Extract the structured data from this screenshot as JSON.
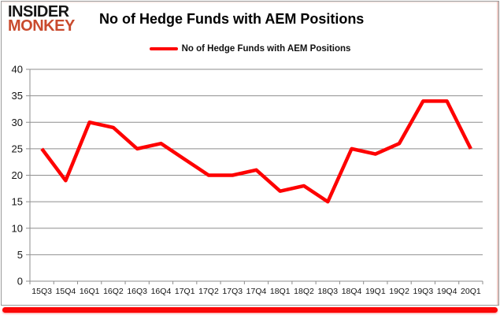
{
  "brand": {
    "line1": "INSIDER",
    "line2": "MONKEY"
  },
  "title": "No of Hedge Funds with AEM Positions",
  "legend": {
    "label": "No of Hedge Funds with AEM Positions",
    "color": "#fe0000"
  },
  "colors": {
    "series_red": "#fe0000",
    "logo_red": "#c94a2d",
    "grid_gray": "#8e8e8e",
    "border_gray": "#9a9a9a",
    "accent_bar_red": "#fb0707"
  },
  "chart_data": {
    "type": "line",
    "title": "No of Hedge Funds with AEM Positions",
    "categories": [
      "15Q3",
      "15Q4",
      "16Q1",
      "16Q2",
      "16Q3",
      "16Q4",
      "17Q1",
      "17Q2",
      "17Q3",
      "17Q4",
      "18Q1",
      "18Q2",
      "18Q3",
      "18Q4",
      "19Q1",
      "19Q2",
      "19Q3",
      "19Q4",
      "20Q1"
    ],
    "series": [
      {
        "name": "No of Hedge Funds with AEM Positions",
        "color": "#fe0000",
        "values": [
          25,
          19,
          30,
          29,
          25,
          26,
          23,
          20,
          20,
          21,
          17,
          18,
          15,
          25,
          24,
          26,
          34,
          34,
          25
        ]
      }
    ],
    "xlabel": "",
    "ylabel": "",
    "ylim": [
      0,
      40
    ],
    "yticks": [
      0,
      5,
      10,
      15,
      20,
      25,
      30,
      35,
      40
    ],
    "grid": true,
    "legend_position": "top-center"
  }
}
